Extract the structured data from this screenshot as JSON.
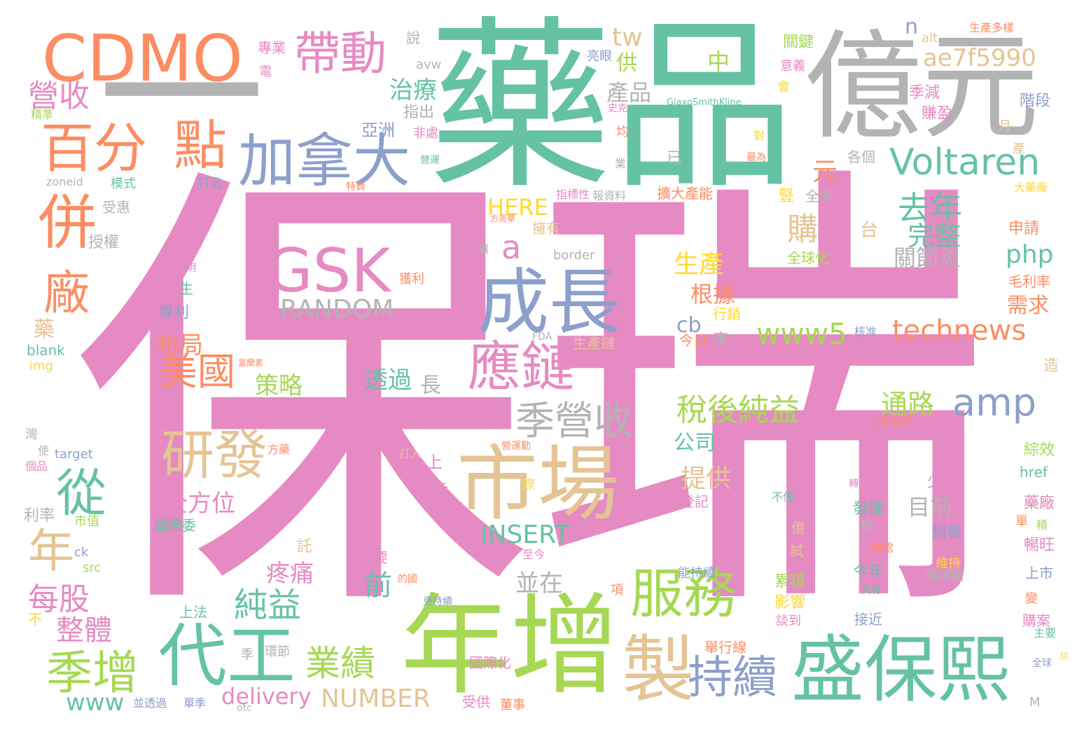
{
  "palette": {
    "pink": "#e68ac3",
    "green": "#66c2a5",
    "orange": "#fc8d62",
    "blue": "#8da0cb",
    "lime": "#a6d854",
    "yellow": "#ffd92f",
    "tan": "#e5c494",
    "gray": "#b3b3b3"
  },
  "words": [
    {
      "text": "保瑞",
      "color": "#e68ac3"
    },
    {
      "text": "藥品",
      "color": "#66c2a5"
    },
    {
      "text": "億元",
      "color": "#b3b3b3"
    },
    {
      "text": "一",
      "color": "#b3b3b3"
    },
    {
      "text": "CDMO",
      "color": "#fc8d62"
    },
    {
      "text": "帶動",
      "color": "#e68ac3"
    },
    {
      "text": "年增",
      "color": "#a6d854"
    },
    {
      "text": "盛保熙",
      "color": "#66c2a5"
    },
    {
      "text": "市場",
      "color": "#e5c494"
    },
    {
      "text": "成長",
      "color": "#8da0cb"
    },
    {
      "text": "加拿大",
      "color": "#8da0cb"
    },
    {
      "text": "GSK",
      "color": "#e68ac3"
    },
    {
      "text": "RANDOM",
      "color": "#b3b3b3"
    },
    {
      "text": "百分",
      "color": "#fc8d62"
    },
    {
      "text": "點",
      "color": "#fc8d62"
    },
    {
      "text": "併",
      "color": "#fc8d62"
    },
    {
      "text": "廠",
      "color": "#fc8d62"
    },
    {
      "text": "營收",
      "color": "#e68ac3"
    },
    {
      "text": "精準",
      "color": "#a6d854"
    },
    {
      "text": "代工",
      "color": "#66c2a5"
    },
    {
      "text": "季增",
      "color": "#a6d854"
    },
    {
      "text": "製",
      "color": "#e5c494"
    },
    {
      "text": "持續",
      "color": "#8da0cb"
    },
    {
      "text": "服務",
      "color": "#a6d854"
    },
    {
      "text": "應鏈",
      "color": "#e68ac3"
    },
    {
      "text": "季營收",
      "color": "#b3b3b3"
    },
    {
      "text": "研發",
      "color": "#e5c494"
    },
    {
      "text": "從",
      "color": "#66c2a5"
    },
    {
      "text": "年",
      "color": "#e5c494"
    },
    {
      "text": "Voltaren",
      "color": "#66c2a5"
    },
    {
      "text": "amp",
      "color": "#8da0cb"
    },
    {
      "text": "technews",
      "color": "#fc8d62"
    },
    {
      "text": "www5",
      "color": "#a6d854"
    },
    {
      "text": "ae7f5990",
      "color": "#e5c494"
    },
    {
      "text": "tw",
      "color": "#e5c494"
    },
    {
      "text": "n",
      "color": "#8da0cb"
    },
    {
      "text": "alt",
      "color": "#e5c494"
    },
    {
      "text": "生產多樣",
      "color": "#fc8d62"
    },
    {
      "text": "中",
      "color": "#a6d854"
    },
    {
      "text": "產品",
      "color": "#b3b3b3"
    },
    {
      "text": "供",
      "color": "#a6d854"
    },
    {
      "text": "治療",
      "color": "#66c2a5"
    },
    {
      "text": "指出",
      "color": "#b3b3b3"
    },
    {
      "text": "亞洲",
      "color": "#8da0cb"
    },
    {
      "text": "非處",
      "color": "#e68ac3"
    },
    {
      "text": "藥廠",
      "color": "#a6d854"
    },
    {
      "text": "GlaxoSmithKline",
      "color": "#66c2a5"
    },
    {
      "text": "去年",
      "color": "#66c2a5"
    },
    {
      "text": "完整",
      "color": "#66c2a5"
    },
    {
      "text": "購",
      "color": "#e5c494"
    },
    {
      "text": "元",
      "color": "#fc8d62"
    },
    {
      "text": "a",
      "color": "#e68ac3"
    },
    {
      "text": "HERE",
      "color": "#ffd92f"
    },
    {
      "text": "美國",
      "color": "#fc8d62"
    },
    {
      "text": "布局",
      "color": "#fc8d62"
    },
    {
      "text": "策略",
      "color": "#a6d854"
    },
    {
      "text": "每股",
      "color": "#e68ac3"
    },
    {
      "text": "整體",
      "color": "#e68ac3"
    },
    {
      "text": "純益",
      "color": "#66c2a5"
    },
    {
      "text": "疼痛",
      "color": "#e68ac3"
    },
    {
      "text": "前",
      "color": "#66c2a5"
    },
    {
      "text": "業績",
      "color": "#a6d854"
    },
    {
      "text": "delivery",
      "color": "#e68ac3"
    },
    {
      "text": "NUMBER",
      "color": "#e5c494"
    },
    {
      "text": "www",
      "color": "#66c2a5"
    },
    {
      "text": "INSERT",
      "color": "#66c2a5"
    },
    {
      "text": "並在",
      "color": "#b3b3b3"
    },
    {
      "text": "目前",
      "color": "#b3b3b3"
    },
    {
      "text": "全方位",
      "color": "#e68ac3"
    },
    {
      "text": "提供",
      "color": "#e5c494"
    },
    {
      "text": "稅後純益",
      "color": "#a6d854"
    },
    {
      "text": "公司",
      "color": "#66c2a5"
    },
    {
      "text": "通路",
      "color": "#a6d854"
    },
    {
      "text": "關節炎",
      "color": "#b3b3b3"
    },
    {
      "text": "php",
      "color": "#66c2a5"
    },
    {
      "text": "需求",
      "color": "#fc8d62"
    },
    {
      "text": "根據",
      "color": "#fc8d62"
    },
    {
      "text": "生產",
      "color": "#ffd92f"
    },
    {
      "text": "cb",
      "color": "#8da0cb"
    },
    {
      "text": "透過",
      "color": "#66c2a5"
    },
    {
      "text": "長",
      "color": "#b3b3b3"
    },
    {
      "text": "台",
      "color": "#e5c494"
    },
    {
      "text": "專業",
      "color": "#e68ac3"
    },
    {
      "text": "電",
      "color": "#e68ac3"
    },
    {
      "text": "說",
      "color": "#b3b3b3"
    },
    {
      "text": "avw",
      "color": "#b3b3b3"
    },
    {
      "text": "亮眼",
      "color": "#8da0cb"
    },
    {
      "text": "關鍵",
      "color": "#a6d854"
    },
    {
      "text": "意義",
      "color": "#e68ac3"
    },
    {
      "text": "會",
      "color": "#ffd92f"
    },
    {
      "text": "季減",
      "color": "#e68ac3"
    },
    {
      "text": "賺盈",
      "color": "#e68ac3"
    },
    {
      "text": "階段",
      "color": "#8da0cb"
    },
    {
      "text": "月",
      "color": "#e5c494"
    },
    {
      "text": "產",
      "color": "#e5c494"
    },
    {
      "text": "大藥廠",
      "color": "#ffd92f"
    },
    {
      "text": "申請",
      "color": "#fc8d62"
    },
    {
      "text": "毛利率",
      "color": "#fc8d62"
    },
    {
      "text": "獲利",
      "color": "#fc8d62"
    },
    {
      "text": "全球化",
      "color": "#a6d854"
    },
    {
      "text": "border",
      "color": "#b3b3b3"
    },
    {
      "text": "擁有",
      "color": "#e5c494"
    },
    {
      "text": "報資料",
      "color": "#b3b3b3"
    },
    {
      "text": "擴大產能",
      "color": "#fc8d62"
    },
    {
      "text": "全年",
      "color": "#b3b3b3"
    },
    {
      "text": "豎",
      "color": "#ffd92f"
    },
    {
      "text": "已",
      "color": "#b3b3b3"
    },
    {
      "text": "各個",
      "color": "#b3b3b3"
    },
    {
      "text": "最為",
      "color": "#fc8d62"
    },
    {
      "text": "對",
      "color": "#ffd92f"
    },
    {
      "text": "均",
      "color": "#fc8d62"
    },
    {
      "text": "業",
      "color": "#b3b3b3"
    },
    {
      "text": "指標性",
      "color": "#e68ac3"
    },
    {
      "text": "方周華",
      "color": "#fc8d62"
    },
    {
      "text": "讓",
      "color": "#b3b3b3"
    },
    {
      "text": "史克",
      "color": "#e68ac3"
    },
    {
      "text": "營運",
      "color": "#66c2a5"
    },
    {
      "text": "特費",
      "color": "#fc8d62"
    },
    {
      "text": "打造",
      "color": "#8da0cb"
    },
    {
      "text": "模式",
      "color": "#66c2a5"
    },
    {
      "text": "zoneid",
      "color": "#b3b3b3"
    },
    {
      "text": "受惠",
      "color": "#b3b3b3"
    },
    {
      "text": "授權",
      "color": "#b3b3b3"
    },
    {
      "text": "說明",
      "color": "#e68ac3"
    },
    {
      "text": "生",
      "color": "#66c2a5"
    },
    {
      "text": "專利",
      "color": "#8da0cb"
    },
    {
      "text": "藥",
      "color": "#e5c494"
    },
    {
      "text": "blank",
      "color": "#66c2a5"
    },
    {
      "text": "img",
      "color": "#ffd92f"
    },
    {
      "text": "富蘭素",
      "color": "#fc8d62"
    },
    {
      "text": "FDA",
      "color": "#b3b3b3"
    },
    {
      "text": "生產鏈",
      "color": "#e5c494"
    },
    {
      "text": "行銷",
      "color": "#ffd92f"
    },
    {
      "text": "今日",
      "color": "#fc8d62"
    },
    {
      "text": "來",
      "color": "#b3b3b3"
    },
    {
      "text": "核准",
      "color": "#8da0cb"
    },
    {
      "text": "造",
      "color": "#e5c494"
    },
    {
      "text": "上市公司",
      "color": "#fc8d62"
    },
    {
      "text": "綜效",
      "color": "#a6d854"
    },
    {
      "text": "href",
      "color": "#66c2a5"
    },
    {
      "text": "藥廠",
      "color": "#e68ac3"
    },
    {
      "text": "單",
      "color": "#fc8d62"
    },
    {
      "text": "積",
      "color": "#a6d854"
    },
    {
      "text": "暢旺",
      "color": "#e68ac3"
    },
    {
      "text": "上市",
      "color": "#8da0cb"
    },
    {
      "text": "營運動",
      "color": "#fc8d62"
    },
    {
      "text": "打入",
      "color": "#e5c494"
    },
    {
      "text": "上",
      "color": "#e68ac3"
    },
    {
      "text": "表示",
      "color": "#e68ac3"
    },
    {
      "text": "際",
      "color": "#ffd92f"
    },
    {
      "text": "方藥",
      "color": "#fc8d62"
    },
    {
      "text": "轉為",
      "color": "#e68ac3"
    },
    {
      "text": "登記",
      "color": "#e68ac3"
    },
    {
      "text": "不僅",
      "color": "#66c2a5"
    },
    {
      "text": "發揮",
      "color": "#66c2a5"
    },
    {
      "text": "較",
      "color": "#b3b3b3"
    },
    {
      "text": "少數",
      "color": "#e68ac3"
    },
    {
      "text": "銷售",
      "color": "#8da0cb"
    },
    {
      "text": "億",
      "color": "#e5c494"
    },
    {
      "text": "試",
      "color": "#e5c494"
    },
    {
      "text": "由處",
      "color": "#fc8d62"
    },
    {
      "text": "維持",
      "color": "#ffd92f"
    },
    {
      "text": "購英國",
      "color": "#b3b3b3"
    },
    {
      "text": "今年",
      "color": "#66c2a5"
    },
    {
      "text": "具有",
      "color": "#66c2a5"
    },
    {
      "text": "能持續",
      "color": "#8da0cb"
    },
    {
      "text": "累積",
      "color": "#a6d854"
    },
    {
      "text": "影響",
      "color": "#ffd92f"
    },
    {
      "text": "談到",
      "color": "#e68ac3"
    },
    {
      "text": "接近",
      "color": "#8da0cb"
    },
    {
      "text": "項",
      "color": "#fc8d62"
    },
    {
      "text": "變",
      "color": "#fc8d62"
    },
    {
      "text": "購案",
      "color": "#e68ac3"
    },
    {
      "text": "主要",
      "color": "#66c2a5"
    },
    {
      "text": "談",
      "color": "#ffd92f"
    },
    {
      "text": "全球",
      "color": "#8da0cb"
    },
    {
      "text": "M",
      "color": "#b3b3b3"
    },
    {
      "text": "舉行線",
      "color": "#fc8d62"
    },
    {
      "text": "國際化",
      "color": "#e68ac3"
    },
    {
      "text": "受供",
      "color": "#e68ac3"
    },
    {
      "text": "董事",
      "color": "#fc8d62"
    },
    {
      "text": "季",
      "color": "#b3b3b3"
    },
    {
      "text": "環節",
      "color": "#b3b3b3"
    },
    {
      "text": "單季",
      "color": "#8da0cb"
    },
    {
      "text": "並透過",
      "color": "#8da0cb"
    },
    {
      "text": "otc",
      "color": "#b3b3b3"
    },
    {
      "text": "上法",
      "color": "#66c2a5"
    },
    {
      "text": "更持續",
      "color": "#8da0cb"
    },
    {
      "text": "的國",
      "color": "#fc8d62"
    },
    {
      "text": "至今",
      "color": "#e68ac3"
    },
    {
      "text": "重要",
      "color": "#e68ac3"
    },
    {
      "text": "託",
      "color": "#e5c494"
    },
    {
      "text": "國際委",
      "color": "#66c2a5"
    },
    {
      "text": "市值",
      "color": "#a6d854"
    },
    {
      "text": "ck",
      "color": "#8da0cb"
    },
    {
      "text": "src",
      "color": "#a6d854"
    },
    {
      "text": "不",
      "color": "#ffd92f"
    },
    {
      "text": "target",
      "color": "#8da0cb"
    },
    {
      "text": "灣",
      "color": "#b3b3b3"
    },
    {
      "text": "使",
      "color": "#b3b3b3"
    },
    {
      "text": "個品",
      "color": "#e68ac3"
    },
    {
      "text": "利率",
      "color": "#b3b3b3"
    }
  ]
}
